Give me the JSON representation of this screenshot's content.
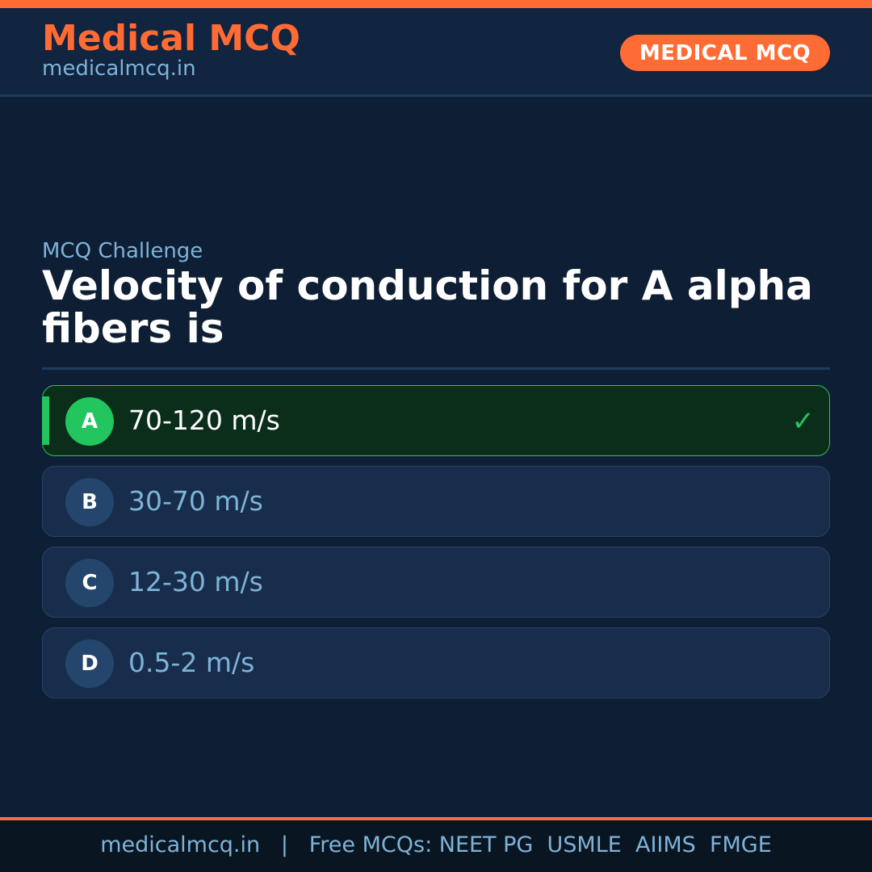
{
  "header": {
    "brand": "Medical MCQ",
    "site": "medicalmcq.in",
    "badge": "MEDICAL MCQ"
  },
  "colors": {
    "accent": "#ff6b35",
    "correct": "#22c55e",
    "background": "#0e1f35"
  },
  "question": {
    "kicker": "MCQ Challenge",
    "text": "Velocity of conduction for A alpha fibers is"
  },
  "options": [
    {
      "letter": "A",
      "text": "70-120 m/s",
      "correct": true,
      "icon": "check-icon"
    },
    {
      "letter": "B",
      "text": "30-70 m/s"
    },
    {
      "letter": "C",
      "text": "12-30 m/s"
    },
    {
      "letter": "D",
      "text": "0.5-2 m/s"
    }
  ],
  "footer": {
    "text": "medicalmcq.in   |   Free MCQs: NEET PG  USMLE  AIIMS  FMGE"
  }
}
